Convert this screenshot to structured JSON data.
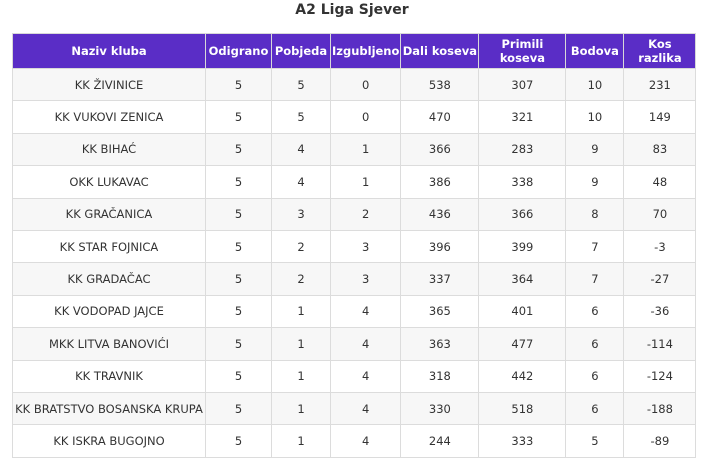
{
  "title": "A2 Liga Sjever",
  "table": {
    "header": [
      "Naziv kluba",
      "Odigrano",
      "Pobjeda",
      "Izgubljeno",
      "Dali koseva",
      "Primili koseva",
      "Bodova",
      "Kos razlika"
    ],
    "rows": [
      [
        "KK ŽIVINICE",
        "5",
        "5",
        "0",
        "538",
        "307",
        "10",
        "231"
      ],
      [
        "KK VUKOVI ZENICA",
        "5",
        "5",
        "0",
        "470",
        "321",
        "10",
        "149"
      ],
      [
        "KK BIHAĆ",
        "5",
        "4",
        "1",
        "366",
        "283",
        "9",
        "83"
      ],
      [
        "OKK LUKAVAC",
        "5",
        "4",
        "1",
        "386",
        "338",
        "9",
        "48"
      ],
      [
        "KK GRAČANICA",
        "5",
        "3",
        "2",
        "436",
        "366",
        "8",
        "70"
      ],
      [
        "KK STAR FOJNICA",
        "5",
        "2",
        "3",
        "396",
        "399",
        "7",
        "-3"
      ],
      [
        "KK GRADAČAC",
        "5",
        "2",
        "3",
        "337",
        "364",
        "7",
        "-27"
      ],
      [
        "KK VODOPAD JAJCE",
        "5",
        "1",
        "4",
        "365",
        "401",
        "6",
        "-36"
      ],
      [
        "MKK LITVA BANOVIĆI",
        "5",
        "1",
        "4",
        "363",
        "477",
        "6",
        "-114"
      ],
      [
        "KK TRAVNIK",
        "5",
        "1",
        "4",
        "318",
        "442",
        "6",
        "-124"
      ],
      [
        "KK BRATSTVO BOSANSKA KRUPA",
        "5",
        "1",
        "4",
        "330",
        "518",
        "6",
        "-188"
      ],
      [
        "KK ISKRA BUGOJNO",
        "5",
        "1",
        "4",
        "244",
        "333",
        "5",
        "-89"
      ]
    ]
  }
}
